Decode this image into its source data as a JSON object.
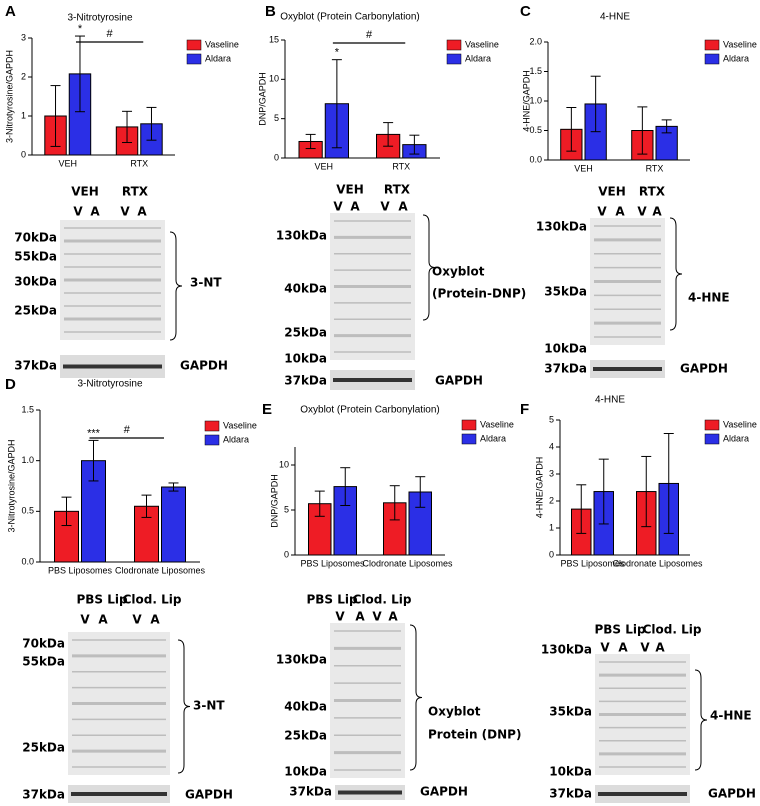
{
  "chart_data": [
    {
      "type": "bar",
      "label": "A",
      "title": "3-Nitrotyrosine",
      "y_label": "3-Nitrotyrosine/GAPDH",
      "categories": [
        "VEH",
        "RTX"
      ],
      "ylim": [
        0,
        3
      ],
      "yticks": [
        0,
        1,
        2,
        3
      ],
      "series": [
        {
          "name": "Vaseline",
          "color": "#ee1c25",
          "values": [
            1.0,
            0.72
          ],
          "errors": [
            0.78,
            0.4
          ]
        },
        {
          "name": "Aldara",
          "color": "#2b2fe6",
          "values": [
            2.08,
            0.8
          ],
          "errors": [
            0.97,
            0.42
          ]
        }
      ],
      "annotations": [
        "*",
        "#"
      ]
    },
    {
      "type": "bar",
      "label": "B",
      "title": "Oxyblot (Protein Carbonylation)",
      "y_label": "DNP/GAPDH",
      "categories": [
        "VEH",
        "RTX"
      ],
      "ylim": [
        0,
        15
      ],
      "yticks": [
        0,
        5,
        10,
        15
      ],
      "series": [
        {
          "name": "Vaseline",
          "color": "#ee1c25",
          "values": [
            2.1,
            3.0
          ],
          "errors": [
            0.9,
            1.5
          ]
        },
        {
          "name": "Aldara",
          "color": "#2b2fe6",
          "values": [
            6.9,
            1.7
          ],
          "errors": [
            5.6,
            1.2
          ]
        }
      ],
      "annotations": [
        "*",
        "#"
      ]
    },
    {
      "type": "bar",
      "label": "C",
      "title": "4-HNE",
      "y_label": "4-HNE/GAPDH",
      "categories": [
        "VEH",
        "RTX"
      ],
      "ylim": [
        0,
        2
      ],
      "yticks": [
        {
          "value": 0,
          "label": "0.0"
        },
        0.5,
        {
          "value": 1,
          "label": "1.0"
        },
        1.5,
        {
          "value": 2,
          "label": "2.0"
        }
      ],
      "series": [
        {
          "name": "Vaseline",
          "color": "#ee1c25",
          "values": [
            0.52,
            0.5
          ],
          "errors": [
            0.37,
            0.4
          ]
        },
        {
          "name": "Aldara",
          "color": "#2b2fe6",
          "values": [
            0.95,
            0.57
          ],
          "errors": [
            0.47,
            0.11
          ]
        }
      ]
    },
    {
      "type": "bar",
      "label": "D",
      "title": "3-Nitrotyrosine",
      "y_label": "3-Nitrotyrosine/GAPDH",
      "categories": [
        "PBS Liposomes",
        "Clodronate Liposomes"
      ],
      "ylim": [
        0,
        1.5
      ],
      "yticks": [
        {
          "value": 0,
          "label": "0.0"
        },
        0.5,
        {
          "value": 1,
          "label": "1.0"
        },
        1.5
      ],
      "series": [
        {
          "name": "Vaseline",
          "color": "#ee1c25",
          "values": [
            0.5,
            0.55
          ],
          "errors": [
            0.14,
            0.11
          ]
        },
        {
          "name": "Aldara",
          "color": "#2b2fe6",
          "values": [
            1.0,
            0.74
          ],
          "errors": [
            0.2,
            0.04
          ]
        }
      ],
      "annotations": [
        "***",
        "#"
      ]
    },
    {
      "type": "bar",
      "label": "E",
      "title": "Oxyblot (Protein Carbonylation)",
      "y_label": "DNP/GAPDH",
      "categories": [
        "PBS Liposomes",
        "Clodronate Liposomes"
      ],
      "ylim": [
        0,
        12
      ],
      "yticks": [
        0,
        5,
        10
      ],
      "series": [
        {
          "name": "Vaseline",
          "color": "#ee1c25",
          "values": [
            5.7,
            5.8
          ],
          "errors": [
            1.4,
            1.9
          ]
        },
        {
          "name": "Aldara",
          "color": "#2b2fe6",
          "values": [
            7.6,
            7.0
          ],
          "errors": [
            2.1,
            1.7
          ]
        }
      ]
    },
    {
      "type": "bar",
      "label": "F",
      "title": "4-HNE",
      "y_label": "4-HNE/GAPDH",
      "categories": [
        "PBS Liposomes",
        "Clodronate Liposomes"
      ],
      "ylim": [
        0,
        5
      ],
      "yticks": [
        0,
        1,
        2,
        3,
        4,
        5
      ],
      "series": [
        {
          "name": "Vaseline",
          "color": "#ee1c25",
          "values": [
            1.7,
            2.35
          ],
          "errors": [
            0.9,
            1.3
          ]
        },
        {
          "name": "Aldara",
          "color": "#2b2fe6",
          "values": [
            2.35,
            2.65
          ],
          "errors": [
            1.2,
            1.85
          ]
        }
      ]
    }
  ],
  "blots": [
    {
      "groups": [
        "VEH",
        "RTX"
      ],
      "lanes": [
        "V",
        "A",
        "V",
        "A"
      ],
      "markers": [
        "70kDa",
        "55kDa",
        "30kDa",
        "25kDa"
      ],
      "target": [
        "3-NT"
      ],
      "loading_marker": "37kDa",
      "loading": "GAPDH"
    },
    {
      "groups": [
        "VEH",
        "RTX"
      ],
      "lanes": [
        "V",
        "A",
        "V",
        "A"
      ],
      "markers": [
        "130kDa",
        "40kDa",
        "25kDa",
        "10kDa"
      ],
      "target": [
        "Oxyblot",
        "(Protein-DNP)"
      ],
      "loading_marker": "37kDa",
      "loading": "GAPDH"
    },
    {
      "groups": [
        "VEH",
        "RTX"
      ],
      "lanes": [
        "V",
        "A",
        "V",
        "A"
      ],
      "markers": [
        "130kDa",
        "35kDa",
        "10kDa"
      ],
      "target": [
        "4-HNE"
      ],
      "loading_marker": "37kDa",
      "loading": "GAPDH"
    },
    {
      "groups": [
        "PBS Lip",
        "Clod. Lip"
      ],
      "lanes": [
        "V",
        "A",
        "V",
        "A"
      ],
      "markers": [
        "70kDa",
        "55kDa",
        "25kDa"
      ],
      "target": [
        "3-NT"
      ],
      "loading_marker": "37kDa",
      "loading": "GAPDH"
    },
    {
      "groups": [
        "PBS Lip",
        "Clod. Lip"
      ],
      "lanes": [
        "V",
        "A",
        "V",
        "A"
      ],
      "markers": [
        "130kDa",
        "40kDa",
        "25kDa",
        "10kDa"
      ],
      "target": [
        "Oxyblot",
        "Protein (DNP)"
      ],
      "loading_marker": "37kDa",
      "loading": "GAPDH"
    },
    {
      "groups": [
        "PBS Lip",
        "Clod. Lip"
      ],
      "lanes": [
        "V",
        "A",
        "V",
        "A"
      ],
      "markers": [
        "130kDa",
        "35kDa",
        "10kDa"
      ],
      "target": [
        "4-HNE"
      ],
      "loading_marker": "37kDa",
      "loading": "GAPDH"
    }
  ]
}
